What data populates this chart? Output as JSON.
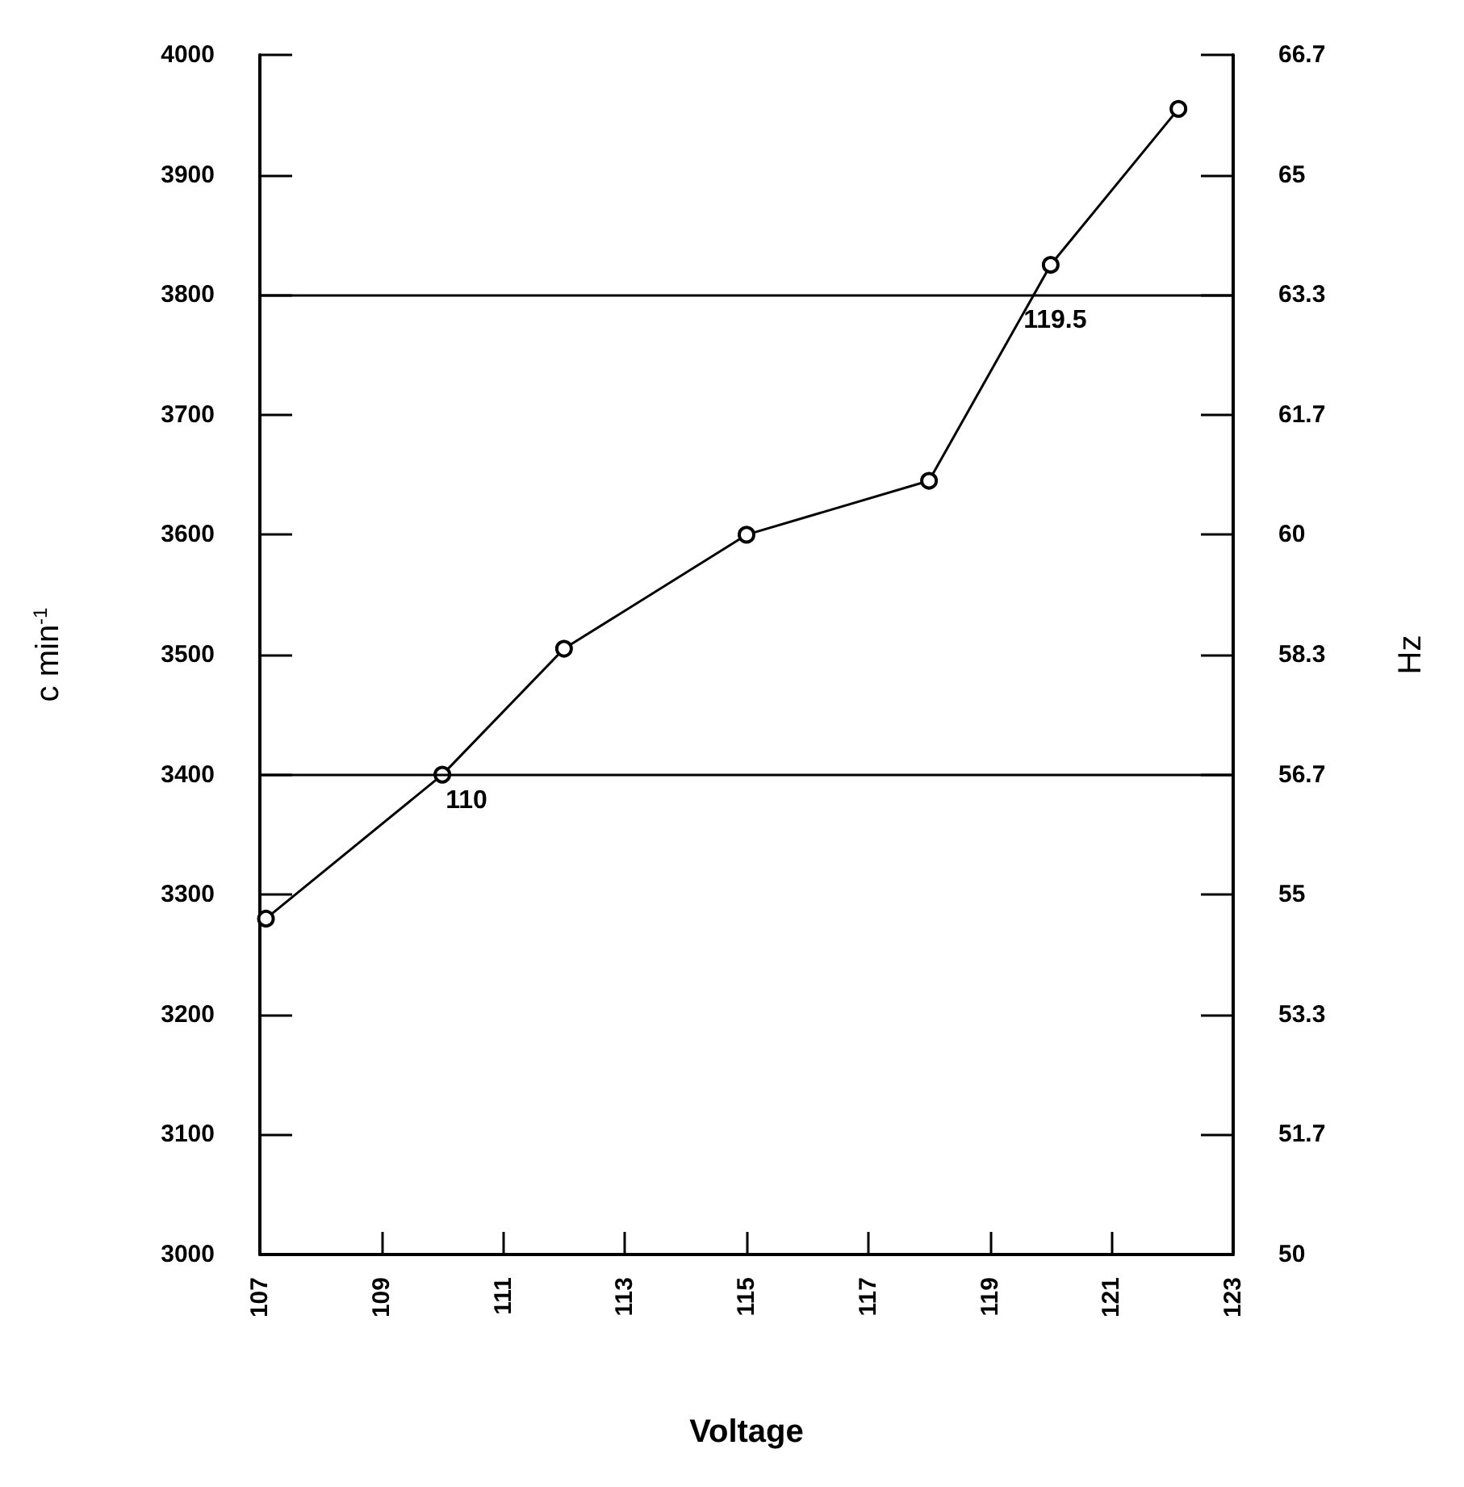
{
  "chart_data": {
    "type": "line",
    "xlabel": "Voltage",
    "ylabel": "c min$^{-1}$",
    "y2label": "Hz",
    "x": [
      107.1,
      110,
      112,
      115,
      118,
      120,
      122.1
    ],
    "series": [
      {
        "color": "#000000",
        "values": [
          3280,
          3400,
          3505,
          3600,
          3645,
          3825,
          3955
        ]
      }
    ],
    "xlim": [
      107,
      123
    ],
    "xticks": [
      107,
      109,
      111,
      113,
      115,
      117,
      119,
      121,
      123
    ],
    "ylim": [
      3000,
      4000
    ],
    "yticks": [
      3000,
      3100,
      3200,
      3300,
      3400,
      3500,
      3600,
      3700,
      3800,
      3900,
      4000
    ],
    "y2lim": [
      50,
      66.6667
    ],
    "y2ticks": [
      50,
      {
        "value": 51.6667,
        "label": "51.7"
      },
      {
        "value": 53.3333,
        "label": "53.3"
      },
      55,
      {
        "value": 56.6667,
        "label": "56.7"
      },
      {
        "value": 58.3333,
        "label": "58.3"
      },
      60,
      {
        "value": 61.6667,
        "label": "61.7"
      },
      {
        "value": 63.3333,
        "label": "63.3"
      },
      65,
      {
        "value": 66.6667,
        "label": "66.7"
      }
    ],
    "ref_lines": [
      {
        "axis": "y",
        "value": 3400,
        "color": "#000000"
      },
      {
        "axis": "y",
        "value": 3800,
        "color": "#000000"
      }
    ],
    "annotations": [
      {
        "text": "110",
        "x": 110,
        "y": 3400
      },
      {
        "text": "119.5",
        "x": 119.5,
        "y": 3800
      }
    ],
    "marker": "circle",
    "line_style": "solid"
  }
}
